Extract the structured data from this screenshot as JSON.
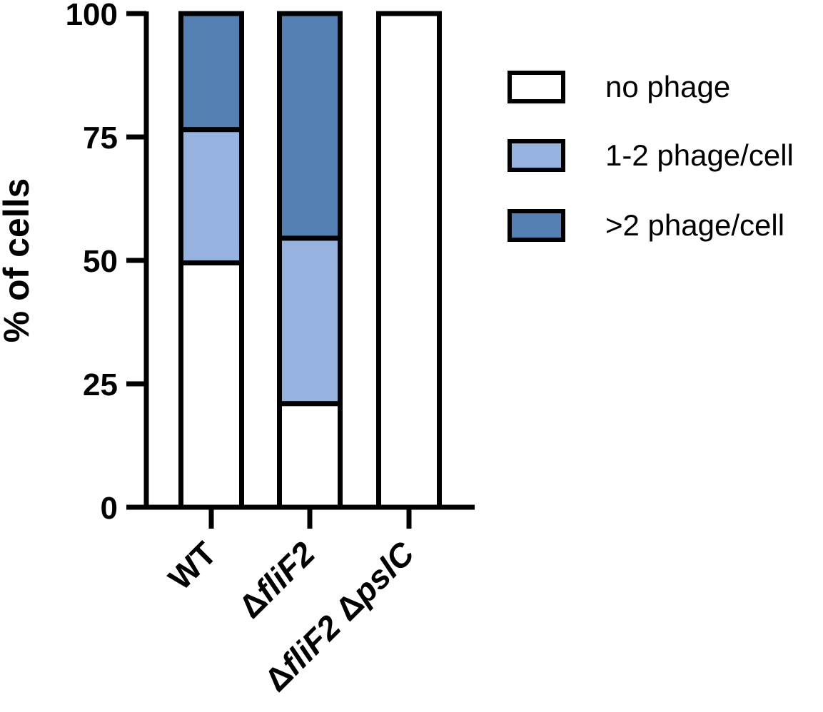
{
  "chart_data": {
    "type": "bar",
    "stacked": true,
    "ylabel": "% of cells",
    "ylim": [
      0,
      100
    ],
    "yticks": [
      "0",
      "25",
      "50",
      "75",
      "100"
    ],
    "categories": [
      {
        "label": "WT",
        "parts": [
          {
            "text": "WT",
            "italic": false
          }
        ]
      },
      {
        "label": "ΔfliF2",
        "parts": [
          {
            "text": "Δ",
            "italic": false
          },
          {
            "text": "fliF2",
            "italic": true
          }
        ]
      },
      {
        "label": "ΔfliF2 ΔpslC",
        "parts": [
          {
            "text": "Δ",
            "italic": false
          },
          {
            "text": "fliF2",
            "italic": true
          },
          {
            "text": " Δ",
            "italic": false
          },
          {
            "text": "pslC",
            "italic": true
          }
        ]
      }
    ],
    "series": [
      {
        "name": "no phage",
        "color": "#ffffff",
        "values": [
          49.5,
          21,
          100
        ]
      },
      {
        "name": "1-2 phage/cell",
        "color": "#95b3de",
        "values": [
          27,
          33.5,
          0
        ]
      },
      {
        "name": ">2 phage/cell",
        "color": "#5580b3",
        "values": [
          23.5,
          45.5,
          0
        ]
      }
    ],
    "legend": "right"
  }
}
